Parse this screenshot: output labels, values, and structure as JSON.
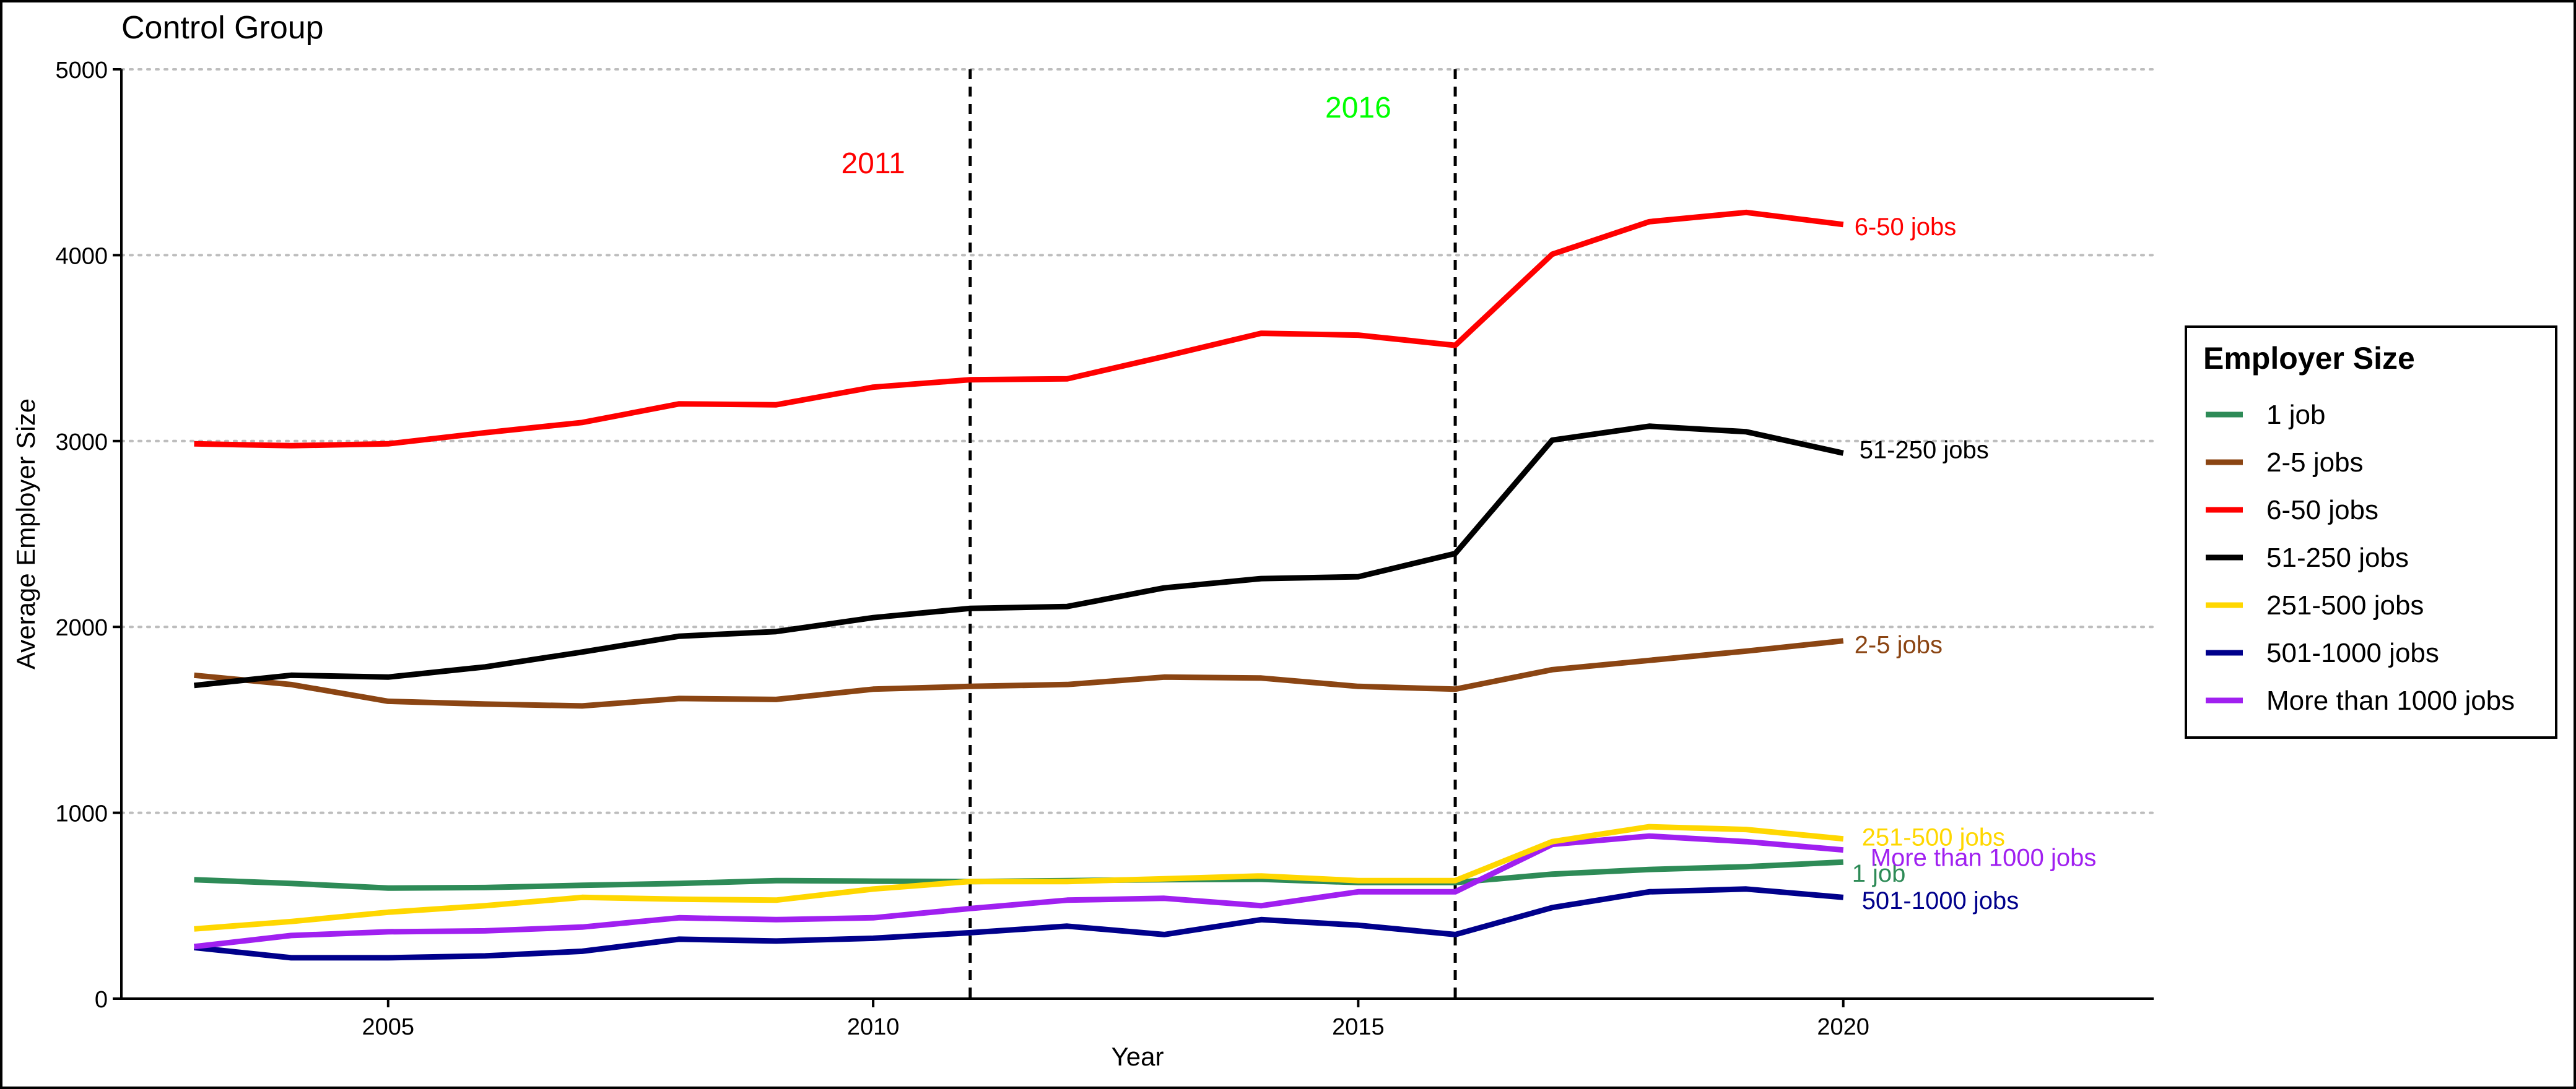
{
  "chart_data": {
    "type": "line",
    "title": "Control Group",
    "xlabel": "Year",
    "ylabel": "Average Employer Size",
    "xlim": [
      2002.25,
      2023.2
    ],
    "ylim": [
      0,
      5000
    ],
    "x_ticks": [
      "2005",
      "2010",
      "2015",
      "2020"
    ],
    "y_ticks": [
      "0",
      "1000",
      "2000",
      "3000",
      "4000",
      "5000"
    ],
    "grid": "horizontal dotted",
    "legend": {
      "title": "Employer Size",
      "position": "right"
    },
    "x": [
      2003,
      2004,
      2005,
      2006,
      2007,
      2008,
      2009,
      2010,
      2011,
      2012,
      2013,
      2014,
      2015,
      2016,
      2017,
      2018,
      2019,
      2020
    ],
    "series": [
      {
        "name": "1 job",
        "color": "#2e8b57",
        "end_label": "1 job",
        "values": [
          640,
          620,
          595,
          598,
          610,
          620,
          635,
          632,
          630,
          635,
          640,
          642,
          625,
          625,
          670,
          695,
          710,
          735
        ]
      },
      {
        "name": "2-5 jobs",
        "color": "#8b4513",
        "end_label": "2-5 jobs",
        "values": [
          1740,
          1690,
          1600,
          1585,
          1575,
          1615,
          1610,
          1665,
          1680,
          1690,
          1730,
          1725,
          1680,
          1665,
          1770,
          1820,
          1870,
          1925
        ]
      },
      {
        "name": "6-50 jobs",
        "color": "#ff0000",
        "end_label": "6-50 jobs",
        "values": [
          2985,
          2975,
          2985,
          3045,
          3100,
          3200,
          3195,
          3290,
          3330,
          3335,
          3455,
          3580,
          3570,
          3515,
          4005,
          4180,
          4230,
          4165
        ]
      },
      {
        "name": "51-250 jobs",
        "color": "#000000",
        "end_label": "51-250 jobs",
        "values": [
          1685,
          1740,
          1730,
          1785,
          1865,
          1950,
          1975,
          2050,
          2100,
          2110,
          2210,
          2260,
          2270,
          2395,
          3005,
          3080,
          3050,
          2935
        ]
      },
      {
        "name": "251-500 jobs",
        "color": "#ffd700",
        "end_label": "251-500 jobs",
        "values": [
          375,
          415,
          465,
          500,
          545,
          535,
          530,
          590,
          630,
          630,
          645,
          660,
          635,
          635,
          845,
          925,
          910,
          860
        ]
      },
      {
        "name": "501-1000 jobs",
        "color": "#00008b",
        "end_label": "501-1000 jobs",
        "values": [
          275,
          220,
          220,
          230,
          255,
          320,
          310,
          325,
          355,
          390,
          345,
          425,
          395,
          345,
          490,
          575,
          590,
          545
        ]
      },
      {
        "name": "More than 1000 jobs",
        "color": "#a020f0",
        "end_label": "More than 1000 jobs",
        "values": [
          280,
          340,
          360,
          365,
          385,
          435,
          425,
          435,
          485,
          530,
          540,
          500,
          575,
          575,
          830,
          875,
          845,
          800
        ]
      }
    ],
    "vertical_lines": [
      {
        "x": 2011,
        "label": "2011",
        "label_y": 4500,
        "label_x": 2010,
        "color": "#ff0000"
      },
      {
        "x": 2016,
        "label": "2016",
        "label_y": 4800,
        "label_x": 2015,
        "color": "#00ff00"
      }
    ]
  }
}
